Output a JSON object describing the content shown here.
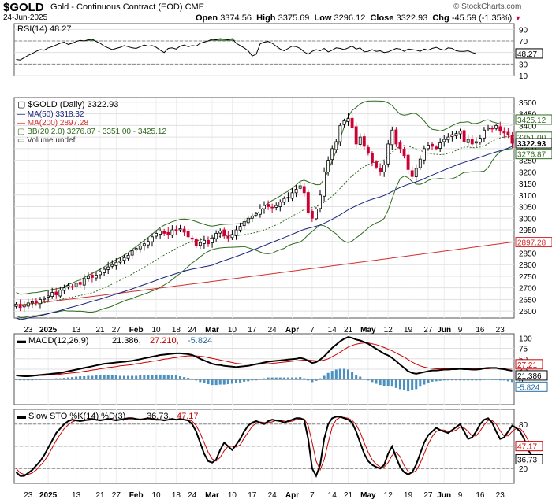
{
  "header": {
    "symbol": "$GOLD",
    "name": "Gold - Continuous Contract (EOD) CME",
    "date": "24-Jun-2025",
    "open_label": "Open",
    "open": "3374.56",
    "high_label": "High",
    "high": "3375.69",
    "low_label": "Low",
    "low": "3296.12",
    "close_label": "Close",
    "close": "3322.93",
    "chg_label": "Chg",
    "chg": "-45.59 (-1.35%)",
    "watermark": "© StockCharts.com"
  },
  "colors": {
    "up": "#000000",
    "down": "#cc0033",
    "ma50": "#1a237e",
    "ma200": "#d32f2f",
    "bb": "#2e6b1c",
    "macd_hist": "#4a90c0",
    "rsi_fill": "#3d7a3a"
  },
  "chart_data": [
    {
      "id": "rsi",
      "type": "line",
      "legend": "RSI(14) 48.27",
      "ylim": [
        10,
        100
      ],
      "yticks": [
        10,
        30,
        50,
        70,
        90
      ],
      "reference_lines": [
        30,
        70
      ],
      "last_value_label": "48.27",
      "values": [
        38,
        37,
        41,
        45,
        48,
        52,
        55,
        54,
        58,
        60,
        63,
        66,
        68,
        64,
        66,
        69,
        71,
        70,
        72,
        73,
        69,
        66,
        61,
        58,
        55,
        57,
        59,
        62,
        60,
        58,
        57,
        60,
        63,
        61,
        62,
        59,
        54,
        50,
        57,
        58,
        56,
        61,
        63,
        60,
        62,
        61,
        66,
        68,
        70,
        73,
        72,
        74,
        73,
        72,
        74,
        66,
        62,
        58,
        53,
        44,
        47,
        65,
        68,
        69,
        66,
        61,
        56,
        53,
        57,
        61,
        60,
        57,
        51,
        47,
        52,
        55,
        53,
        57,
        51,
        54,
        58,
        57,
        55,
        58,
        61,
        56,
        58,
        51,
        52,
        55,
        52,
        53,
        50,
        51,
        54,
        57,
        56,
        52,
        56,
        55,
        54,
        52,
        56,
        54,
        57,
        59,
        56,
        54,
        58,
        57,
        53,
        52,
        52,
        53,
        50,
        48
      ]
    },
    {
      "id": "price",
      "type": "candlestick",
      "legend": {
        "title": "$GOLD (Daily) 3322.93",
        "ma50": "MA(50) 3318.32",
        "ma200": "MA(200) 2897.28",
        "bb": "BB(20,2.0) 3276.87 - 3351.00 - 3425.12",
        "volume": "Volume undef"
      },
      "ylim": [
        2570,
        3520
      ],
      "yticks": [
        2600,
        2650,
        2700,
        2750,
        2800,
        2850,
        2900,
        2950,
        3000,
        3050,
        3100,
        3150,
        3200,
        3250,
        3300,
        3350,
        3400,
        3450,
        3500
      ],
      "value_tags": [
        {
          "label": "3425.12",
          "value": 3425.12,
          "color": "#2e6b1c"
        },
        {
          "label": "3351.00",
          "value": 3351.0,
          "color": "#2e6b1c"
        },
        {
          "label": "3322.93",
          "value": 3322.93,
          "color": "#000000",
          "bold": true
        },
        {
          "label": "3276.87",
          "value": 3276.87,
          "color": "#2e6b1c"
        },
        {
          "label": "2897.28",
          "value": 2897.28,
          "color": "#d32f2f"
        }
      ],
      "x_labels": [
        {
          "i": 3,
          "label": "23"
        },
        {
          "i": 8,
          "label": "2025"
        },
        {
          "i": 15,
          "label": "13"
        },
        {
          "i": 21,
          "label": "21"
        },
        {
          "i": 25,
          "label": "27"
        },
        {
          "i": 30,
          "label": "Feb"
        },
        {
          "i": 35,
          "label": "10"
        },
        {
          "i": 40,
          "label": "18"
        },
        {
          "i": 44,
          "label": "24"
        },
        {
          "i": 49,
          "label": "Mar"
        },
        {
          "i": 54,
          "label": "10"
        },
        {
          "i": 59,
          "label": "17"
        },
        {
          "i": 64,
          "label": "24"
        },
        {
          "i": 69,
          "label": "Apr"
        },
        {
          "i": 74,
          "label": "7"
        },
        {
          "i": 79,
          "label": "14"
        },
        {
          "i": 83,
          "label": "21"
        },
        {
          "i": 88,
          "label": "May"
        },
        {
          "i": 93,
          "label": "12"
        },
        {
          "i": 98,
          "label": "19"
        },
        {
          "i": 103,
          "label": "27"
        },
        {
          "i": 107,
          "label": "Jun"
        },
        {
          "i": 111,
          "label": "9"
        },
        {
          "i": 116,
          "label": "16"
        },
        {
          "i": 121,
          "label": "23"
        }
      ],
      "closes": [
        2630,
        2615,
        2625,
        2635,
        2640,
        2635,
        2650,
        2655,
        2665,
        2680,
        2670,
        2690,
        2700,
        2710,
        2705,
        2720,
        2715,
        2740,
        2750,
        2745,
        2755,
        2770,
        2780,
        2790,
        2800,
        2810,
        2815,
        2830,
        2840,
        2860,
        2870,
        2880,
        2890,
        2900,
        2920,
        2935,
        2945,
        2935,
        2930,
        2950,
        2945,
        2955,
        2940,
        2920,
        2910,
        2880,
        2895,
        2905,
        2890,
        2915,
        2935,
        2945,
        2925,
        2915,
        2930,
        2950,
        2965,
        2985,
        3000,
        3010,
        3020,
        3040,
        3055,
        3050,
        3045,
        3055,
        3070,
        3085,
        3090,
        3110,
        3125,
        3140,
        3110,
        3025,
        3000,
        3040,
        3100,
        3200,
        3250,
        3300,
        3330,
        3400,
        3420,
        3430,
        3390,
        3320,
        3350,
        3310,
        3280,
        3240,
        3220,
        3200,
        3230,
        3320,
        3380,
        3320,
        3300,
        3270,
        3210,
        3180,
        3215,
        3255,
        3300,
        3315,
        3310,
        3300,
        3325,
        3340,
        3350,
        3360,
        3365,
        3375,
        3330,
        3340,
        3320,
        3330,
        3345,
        3380,
        3390,
        3385,
        3400,
        3375,
        3368,
        3360,
        3323
      ]
    },
    {
      "id": "macd",
      "type": "line",
      "legend": {
        "title": "MACD(12,26,9)",
        "macd": "21.386",
        "signal": "27.210",
        "hist": "-5.824"
      },
      "ylim": [
        -60,
        110
      ],
      "yticks": [
        0,
        25,
        50,
        75,
        100
      ],
      "value_tags": [
        {
          "label": "27.21",
          "value": 27.21,
          "color": "#cc0000"
        },
        {
          "label": "21.386",
          "value": 21.386,
          "color": "#000000"
        },
        {
          "label": "-5.824",
          "value": -5.824,
          "color": "#2a6ea0"
        }
      ],
      "macd": [
        10,
        9,
        8,
        8,
        9,
        10,
        11,
        12,
        13,
        14,
        15,
        16,
        18,
        20,
        22,
        24,
        26,
        28,
        30,
        32,
        34,
        36,
        38,
        39,
        40,
        41,
        42,
        43,
        44,
        45,
        47,
        49,
        51,
        53,
        55,
        57,
        59,
        60,
        61,
        62,
        63,
        63,
        62,
        61,
        59,
        55,
        50,
        46,
        42,
        38,
        36,
        35,
        33,
        32,
        31,
        30,
        31,
        32,
        33,
        35,
        37,
        39,
        41,
        43,
        44,
        45,
        46,
        47,
        48,
        49,
        50,
        52,
        50,
        45,
        40,
        42,
        48,
        56,
        66,
        76,
        84,
        92,
        98,
        102,
        100,
        96,
        94,
        90,
        86,
        80,
        74,
        68,
        62,
        58,
        52,
        44,
        36,
        28,
        20,
        16,
        14,
        16,
        18,
        20,
        22,
        22,
        23,
        24,
        24,
        25,
        25,
        26,
        25,
        25,
        24,
        24,
        25,
        27,
        28,
        28,
        28,
        26,
        25,
        23,
        21.386
      ],
      "signal": [
        9,
        9,
        9,
        9,
        9,
        9,
        10,
        10,
        11,
        12,
        12,
        13,
        14,
        15,
        16,
        17,
        18,
        20,
        21,
        23,
        24,
        26,
        27,
        29,
        30,
        31,
        33,
        34,
        35,
        36,
        38,
        39,
        41,
        42,
        44,
        45,
        47,
        49,
        50,
        52,
        53,
        55,
        56,
        57,
        57,
        57,
        56,
        55,
        53,
        51,
        49,
        47,
        45,
        43,
        41,
        39,
        38,
        37,
        37,
        37,
        37,
        37,
        38,
        38,
        39,
        40,
        41,
        42,
        43,
        44,
        45,
        46,
        47,
        47,
        46,
        45,
        45,
        47,
        50,
        55,
        60,
        66,
        72,
        78,
        82,
        85,
        87,
        88,
        88,
        86,
        84,
        81,
        77,
        73,
        69,
        64,
        59,
        54,
        48,
        42,
        37,
        33,
        30,
        28,
        27,
        26,
        26,
        26,
        26,
        26,
        26,
        26,
        26,
        26,
        26,
        26,
        26,
        26,
        26,
        27,
        27,
        27,
        27,
        27,
        27.21
      ]
    },
    {
      "id": "sto",
      "type": "line",
      "legend": {
        "title": "Slow STO %K(14) %D(3)",
        "k": "36.73",
        "d": "47.17"
      },
      "ylim": [
        0,
        100
      ],
      "yticks": [
        20,
        50,
        80
      ],
      "reference_lines": [
        20,
        80
      ],
      "value_tags": [
        {
          "label": "47.17",
          "value": 47.17,
          "color": "#cc0000"
        },
        {
          "label": "36.73",
          "value": 36.73,
          "color": "#000000"
        }
      ],
      "k": [
        15,
        10,
        10,
        14,
        18,
        24,
        30,
        38,
        48,
        58,
        68,
        74,
        80,
        84,
        86,
        85,
        84,
        85,
        86,
        87,
        86,
        85,
        86,
        87,
        86,
        85,
        86,
        87,
        88,
        88,
        87,
        86,
        87,
        88,
        87,
        86,
        86,
        85,
        86,
        87,
        86,
        87,
        86,
        85,
        80,
        70,
        55,
        40,
        30,
        28,
        32,
        45,
        55,
        50,
        45,
        52,
        60,
        70,
        78,
        82,
        84,
        82,
        80,
        84,
        86,
        85,
        84,
        82,
        84,
        86,
        88,
        88,
        86,
        60,
        20,
        10,
        25,
        60,
        80,
        88,
        90,
        90,
        88,
        86,
        82,
        70,
        55,
        40,
        30,
        25,
        22,
        20,
        25,
        40,
        50,
        35,
        22,
        15,
        12,
        15,
        25,
        40,
        55,
        65,
        70,
        75,
        72,
        70,
        68,
        72,
        76,
        80,
        70,
        60,
        62,
        70,
        80,
        86,
        88,
        82,
        70,
        60,
        62,
        70,
        78,
        75,
        70,
        60,
        45,
        36.73
      ],
      "d": [
        20,
        14,
        12,
        12,
        14,
        18,
        24,
        30,
        38,
        48,
        58,
        66,
        74,
        79,
        83,
        85,
        85,
        85,
        85,
        86,
        86,
        86,
        86,
        86,
        86,
        86,
        86,
        86,
        87,
        87,
        87,
        87,
        87,
        87,
        87,
        87,
        86,
        86,
        86,
        86,
        86,
        86,
        86,
        86,
        84,
        78,
        68,
        55,
        42,
        33,
        30,
        35,
        44,
        50,
        50,
        49,
        52,
        61,
        69,
        77,
        81,
        83,
        82,
        82,
        83,
        85,
        85,
        84,
        83,
        84,
        86,
        87,
        87,
        78,
        55,
        30,
        18,
        32,
        55,
        76,
        86,
        89,
        89,
        88,
        85,
        79,
        69,
        55,
        42,
        32,
        26,
        22,
        22,
        28,
        38,
        42,
        36,
        24,
        16,
        14,
        17,
        27,
        40,
        53,
        63,
        70,
        72,
        72,
        70,
        70,
        72,
        76,
        75,
        70,
        64,
        64,
        71,
        79,
        85,
        85,
        80,
        71,
        64,
        64,
        70,
        74,
        74,
        68,
        58,
        47.17
      ]
    }
  ]
}
